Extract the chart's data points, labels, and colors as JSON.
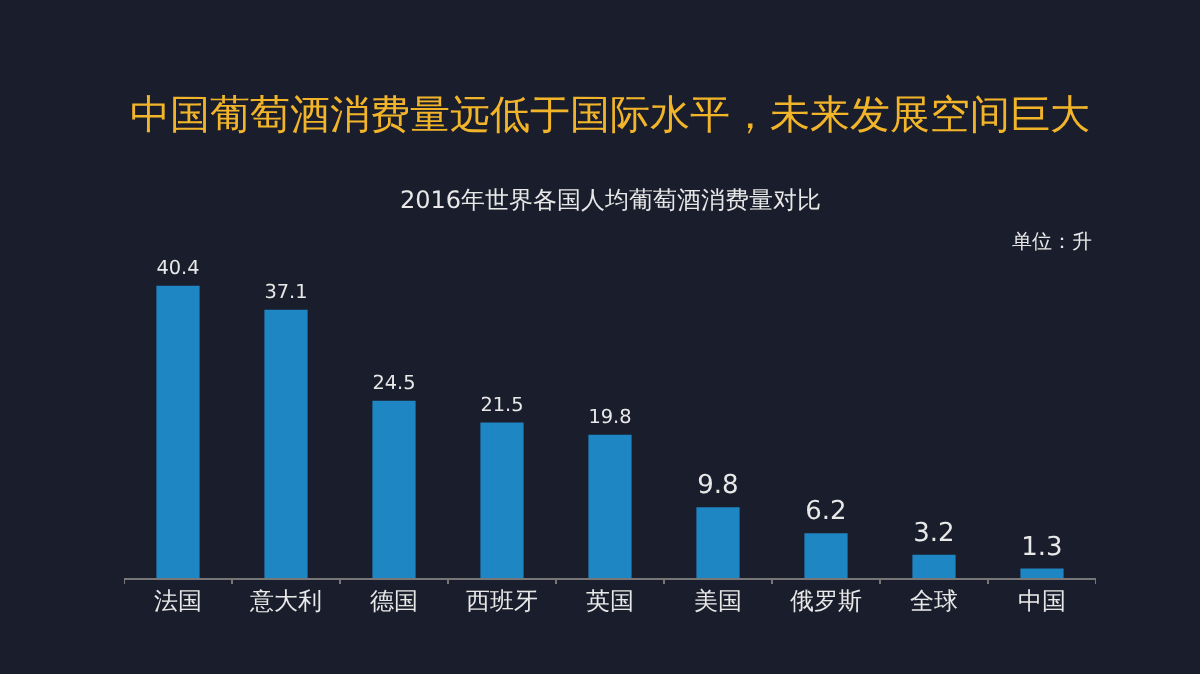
{
  "chart_data": {
    "type": "bar",
    "title": "中国葡萄酒消费量远低于国际水平，未来发展空间巨大",
    "subtitle": "2016年世界各国人均葡萄酒消费量对比",
    "annotations": [
      "单位：升"
    ],
    "categories": [
      "法国",
      "意大利",
      "德国",
      "西班牙",
      "英国",
      "美国",
      "俄罗斯",
      "全球",
      "中国"
    ],
    "values": [
      40.4,
      37.1,
      24.5,
      21.5,
      19.8,
      9.8,
      6.2,
      3.2,
      1.3
    ],
    "color": "#1f86c4",
    "data_labels": true,
    "grid": false,
    "legend": false
  }
}
